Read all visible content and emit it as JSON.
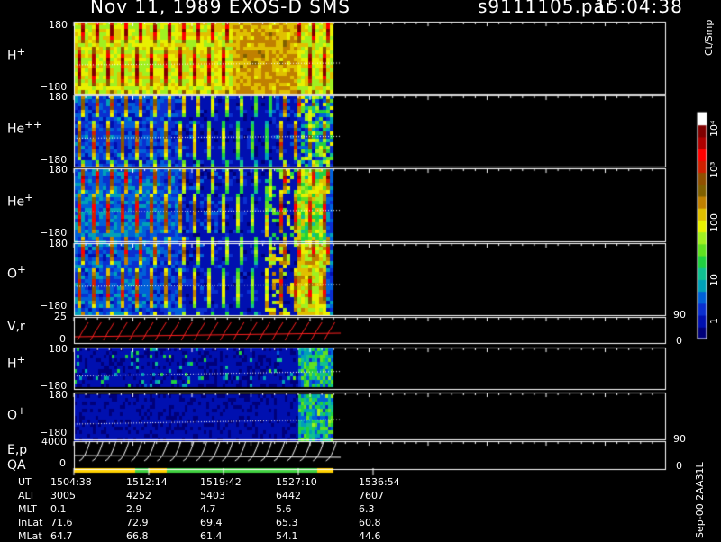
{
  "header": {
    "title_left": "Nov 11, 1989    EXOS-D SMS",
    "filename": "s9111105.par",
    "time": "15:04:38"
  },
  "chart_data": {
    "type": "heatmap",
    "panels": [
      {
        "label": "H",
        "sup": "+",
        "ymax": "180",
        "ymin": "−180"
      },
      {
        "label": "He",
        "sup": "++",
        "ymax": "180",
        "ymin": "−180"
      },
      {
        "label": "He",
        "sup": "+",
        "ymax": "180",
        "ymin": "−180"
      },
      {
        "label": "O",
        "sup": "+",
        "ymax": "180",
        "ymin": "−180"
      },
      {
        "label": "V,r",
        "sup": "",
        "ymax": "25",
        "ymin": "0",
        "right_top": "90",
        "right_bottom": "0"
      },
      {
        "label": "H",
        "sup": "+",
        "ymax": "180",
        "ymin": "−180"
      },
      {
        "label": "O",
        "sup": "+",
        "ymax": "180",
        "ymin": "−180"
      },
      {
        "label": "E,p",
        "sup": "",
        "ymax": "4000",
        "ymin": "0",
        "right_top": "90",
        "right_bottom": "0"
      }
    ],
    "qa_label": "QA",
    "colorbar": {
      "unit": "Ct/Smp",
      "ticks": [
        "1",
        "10",
        "100",
        "10³",
        "10⁴"
      ],
      "colors": [
        "#00007a",
        "#0010b0",
        "#0a2fd0",
        "#0060d8",
        "#00a0b8",
        "#10c090",
        "#20d040",
        "#60e020",
        "#a0f020",
        "#e8f000",
        "#e0c000",
        "#c08000",
        "#806000",
        "#905000",
        "#d02000",
        "#ff0000",
        "#b00000",
        "#800000",
        "#ffffff"
      ]
    },
    "time_axis": {
      "rows": [
        {
          "name": "UT",
          "values": [
            "1504:38",
            "1512:14",
            "1519:42",
            "1527:10",
            "1536:54"
          ]
        },
        {
          "name": "ALT",
          "values": [
            "3005",
            "4252",
            "5403",
            "6442",
            "7607"
          ]
        },
        {
          "name": "MLT",
          "values": [
            "0.1",
            "2.9",
            "4.7",
            "5.6",
            "6.3"
          ]
        },
        {
          "name": "InLat",
          "values": [
            "71.6",
            "72.9",
            "69.4",
            "65.3",
            "60.8"
          ]
        },
        {
          "name": "MLat",
          "values": [
            "64.7",
            "66.8",
            "61.4",
            "54.1",
            "44.6"
          ]
        }
      ]
    },
    "footer_vertical": "Sep-00  2AA31L"
  }
}
